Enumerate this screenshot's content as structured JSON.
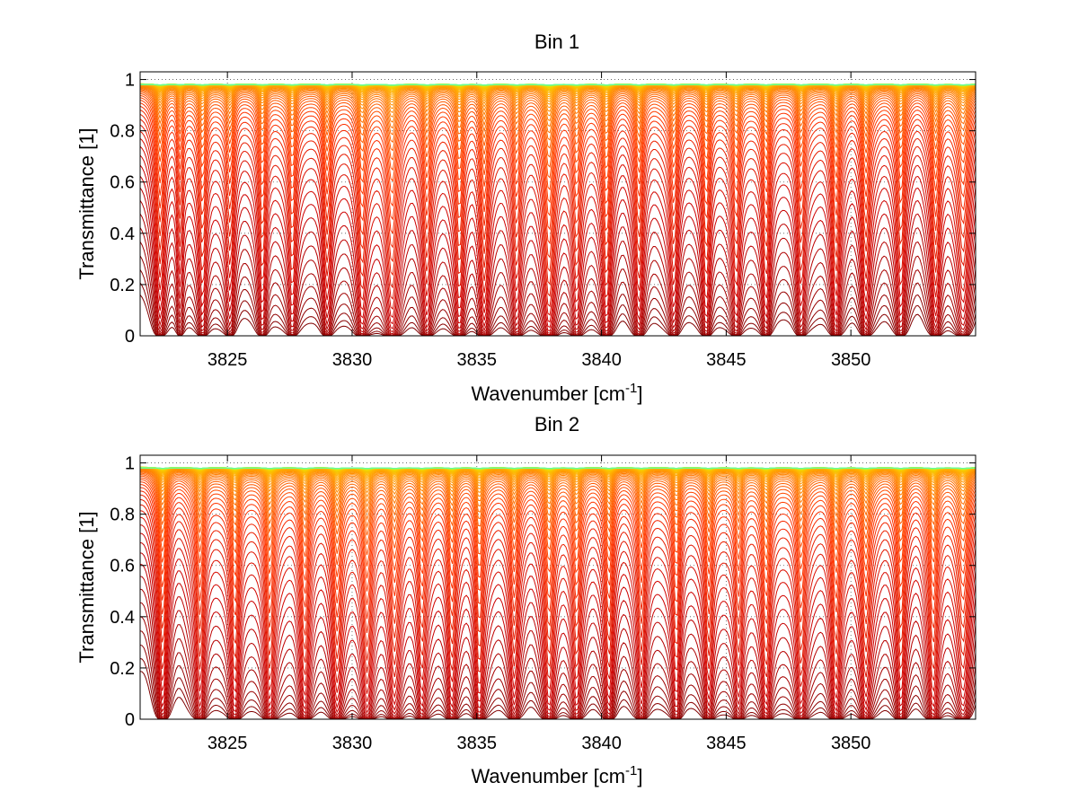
{
  "chart_data": [
    {
      "type": "line",
      "title": "Bin 1",
      "xlabel": "Wavenumber [cm",
      "xlabel_sup": "-1",
      "xlabel_end": "]",
      "ylabel": "Transmittance [1]",
      "xlim": [
        3821.5,
        3855
      ],
      "ylim": [
        0,
        1.03
      ],
      "xticks": [
        3825,
        3830,
        3835,
        3840,
        3845,
        3850
      ],
      "yticks": [
        0,
        0.2,
        0.4,
        0.6,
        0.8,
        1
      ],
      "ytick_labels": [
        "0",
        "0.2",
        "0.4",
        "0.6",
        "0.8",
        "1"
      ],
      "grid": true,
      "series_count": 60,
      "colormap": [
        "#800000",
        "#cc0000",
        "#ff3300",
        "#ff7a00",
        "#ffb300",
        "#e6e600",
        "#66ff99"
      ],
      "absorption_lines": [
        {
          "x": 3822.3,
          "depth": 0.55,
          "width": 0.15
        },
        {
          "x": 3823.1,
          "depth": 0.35,
          "width": 0.12
        },
        {
          "x": 3824.0,
          "depth": 0.5,
          "width": 0.15
        },
        {
          "x": 3825.1,
          "depth": 0.45,
          "width": 0.15
        },
        {
          "x": 3826.4,
          "depth": 0.5,
          "width": 0.15
        },
        {
          "x": 3827.6,
          "depth": 0.5,
          "width": 0.15
        },
        {
          "x": 3829.0,
          "depth": 0.55,
          "width": 0.15
        },
        {
          "x": 3830.4,
          "depth": 0.6,
          "width": 0.16
        },
        {
          "x": 3831.6,
          "depth": 0.75,
          "width": 0.2
        },
        {
          "x": 3833.0,
          "depth": 0.55,
          "width": 0.15
        },
        {
          "x": 3834.3,
          "depth": 0.6,
          "width": 0.15
        },
        {
          "x": 3835.3,
          "depth": 0.65,
          "width": 0.15
        },
        {
          "x": 3836.6,
          "depth": 0.5,
          "width": 0.15
        },
        {
          "x": 3837.9,
          "depth": 0.85,
          "width": 0.18
        },
        {
          "x": 3839.0,
          "depth": 0.5,
          "width": 0.15
        },
        {
          "x": 3840.2,
          "depth": 0.6,
          "width": 0.15
        },
        {
          "x": 3841.5,
          "depth": 0.55,
          "width": 0.15
        },
        {
          "x": 3842.9,
          "depth": 0.5,
          "width": 0.15
        },
        {
          "x": 3844.2,
          "depth": 0.55,
          "width": 0.15
        },
        {
          "x": 3845.4,
          "depth": 0.5,
          "width": 0.15
        },
        {
          "x": 3846.6,
          "depth": 0.55,
          "width": 0.15
        },
        {
          "x": 3848.0,
          "depth": 0.5,
          "width": 0.15
        },
        {
          "x": 3849.4,
          "depth": 0.6,
          "width": 0.15
        },
        {
          "x": 3850.6,
          "depth": 0.55,
          "width": 0.15
        },
        {
          "x": 3852.0,
          "depth": 0.5,
          "width": 0.15
        },
        {
          "x": 3853.4,
          "depth": 0.6,
          "width": 0.15
        },
        {
          "x": 3854.5,
          "depth": 0.55,
          "width": 0.2
        }
      ]
    },
    {
      "type": "line",
      "title": "Bin 2",
      "xlabel": "Wavenumber [cm",
      "xlabel_sup": "-1",
      "xlabel_end": "]",
      "ylabel": "Transmittance [1]",
      "xlim": [
        3821.5,
        3855
      ],
      "ylim": [
        0,
        1.03
      ],
      "xticks": [
        3825,
        3830,
        3835,
        3840,
        3845,
        3850
      ],
      "yticks": [
        0,
        0.2,
        0.4,
        0.6,
        0.8,
        1
      ],
      "ytick_labels": [
        "0",
        "0.2",
        "0.4",
        "0.6",
        "0.8",
        "1"
      ],
      "grid": true,
      "series_count": 60,
      "colormap": [
        "#800000",
        "#cc0000",
        "#ff3300",
        "#ff7a00",
        "#ffb300",
        "#e6e600",
        "#66ff99"
      ],
      "absorption_lines": [
        {
          "x": 3822.4,
          "depth": 0.65,
          "width": 0.15
        },
        {
          "x": 3823.9,
          "depth": 0.6,
          "width": 0.15
        },
        {
          "x": 3825.3,
          "depth": 0.65,
          "width": 0.16
        },
        {
          "x": 3826.7,
          "depth": 0.7,
          "width": 0.16
        },
        {
          "x": 3828.1,
          "depth": 0.65,
          "width": 0.16
        },
        {
          "x": 3829.4,
          "depth": 0.7,
          "width": 0.16
        },
        {
          "x": 3830.6,
          "depth": 0.7,
          "width": 0.16
        },
        {
          "x": 3831.7,
          "depth": 0.65,
          "width": 0.18
        },
        {
          "x": 3832.8,
          "depth": 0.55,
          "width": 0.15
        },
        {
          "x": 3834.0,
          "depth": 0.6,
          "width": 0.15
        },
        {
          "x": 3835.1,
          "depth": 0.65,
          "width": 0.15
        },
        {
          "x": 3836.5,
          "depth": 0.55,
          "width": 0.15
        },
        {
          "x": 3837.9,
          "depth": 0.7,
          "width": 0.17
        },
        {
          "x": 3839.0,
          "depth": 0.55,
          "width": 0.15
        },
        {
          "x": 3840.3,
          "depth": 0.6,
          "width": 0.15
        },
        {
          "x": 3841.6,
          "depth": 0.55,
          "width": 0.15
        },
        {
          "x": 3843.0,
          "depth": 0.55,
          "width": 0.15
        },
        {
          "x": 3844.3,
          "depth": 0.6,
          "width": 0.15
        },
        {
          "x": 3845.5,
          "depth": 0.55,
          "width": 0.15
        },
        {
          "x": 3846.6,
          "depth": 0.7,
          "width": 0.16
        },
        {
          "x": 3848.0,
          "depth": 0.65,
          "width": 0.16
        },
        {
          "x": 3849.4,
          "depth": 0.7,
          "width": 0.16
        },
        {
          "x": 3850.6,
          "depth": 0.65,
          "width": 0.16
        },
        {
          "x": 3852.0,
          "depth": 0.6,
          "width": 0.15
        },
        {
          "x": 3853.3,
          "depth": 0.7,
          "width": 0.16
        },
        {
          "x": 3854.5,
          "depth": 0.6,
          "width": 0.2
        }
      ]
    }
  ]
}
